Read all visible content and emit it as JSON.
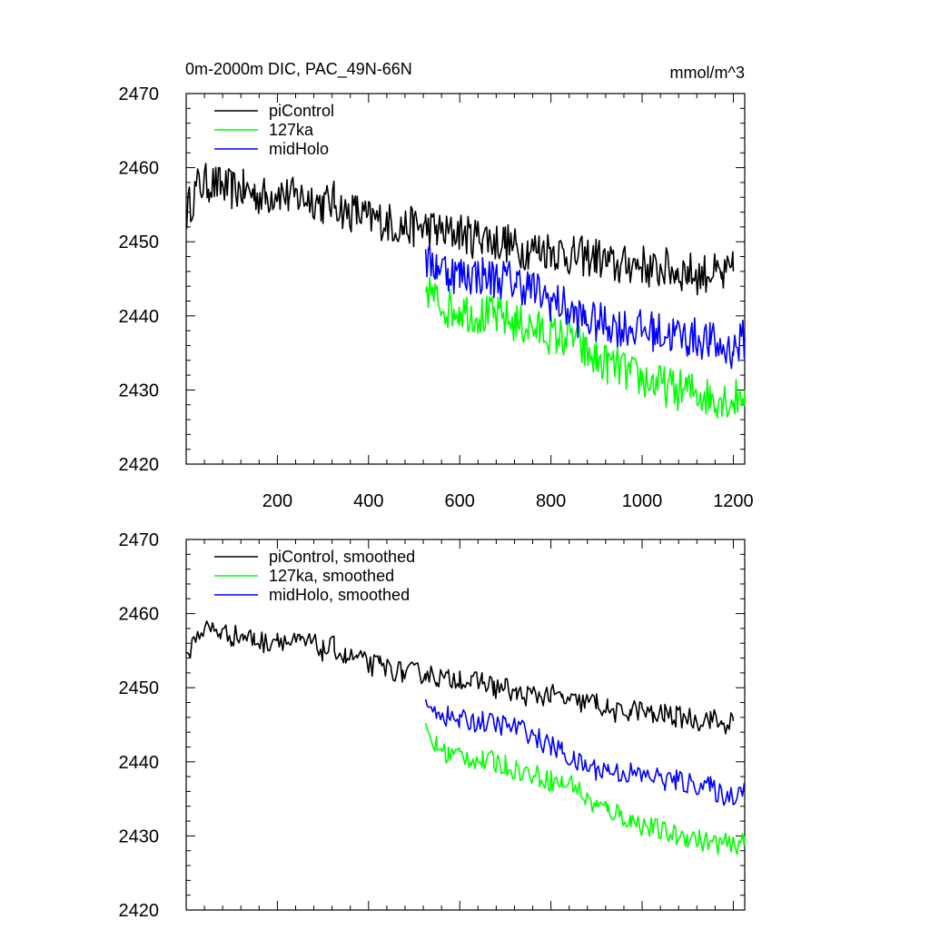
{
  "figure": {
    "title_left": "0m-2000m DIC, PAC_49N-66N",
    "title_right": "mmol/m^3"
  },
  "chart_data": [
    {
      "type": "line",
      "xlim": [
        0,
        1225
      ],
      "ylim": [
        2420,
        2470
      ],
      "yticks": [
        2420,
        2430,
        2440,
        2450,
        2460,
        2470
      ],
      "xticks": [
        200,
        400,
        600,
        800,
        1000,
        1200
      ],
      "xtick_labels": [
        "200",
        "400",
        "600",
        "800",
        "1000",
        "1200"
      ],
      "grid": false,
      "legend_position": "top-left",
      "series": [
        {
          "name": "piControl",
          "color": "#000000",
          "x": [
            1,
            25,
            50,
            75,
            100,
            125,
            150,
            175,
            200,
            225,
            250,
            275,
            300,
            325,
            350,
            375,
            400,
            425,
            450,
            475,
            500,
            525,
            550,
            575,
            600,
            625,
            650,
            675,
            700,
            725,
            750,
            775,
            800,
            825,
            850,
            875,
            900,
            925,
            950,
            975,
            1000,
            1025,
            1050,
            1075,
            1100,
            1125,
            1150,
            1175,
            1200
          ],
          "y": [
            2454,
            2457.5,
            2458,
            2457.5,
            2457,
            2457,
            2456.5,
            2456,
            2457,
            2456,
            2456,
            2456,
            2455,
            2455.5,
            2454,
            2454,
            2453,
            2453,
            2452.5,
            2452,
            2452,
            2452,
            2451.5,
            2451,
            2451.5,
            2450.5,
            2451,
            2450,
            2450,
            2449,
            2449,
            2449,
            2449,
            2448.5,
            2448,
            2448,
            2448,
            2447,
            2446.5,
            2447,
            2447,
            2446,
            2446.5,
            2446,
            2446,
            2445.5,
            2446,
            2445,
            2446
          ]
        },
        {
          "name": "127ka",
          "color": "#00ff00",
          "x": [
            525,
            550,
            575,
            600,
            625,
            650,
            675,
            700,
            725,
            750,
            775,
            800,
            825,
            850,
            875,
            900,
            925,
            950,
            975,
            1000,
            1025,
            1050,
            1075,
            1100,
            1125,
            1150,
            1175,
            1200,
            1225
          ],
          "y": [
            2444,
            2442,
            2441,
            2441,
            2440.5,
            2440,
            2440,
            2439.5,
            2439,
            2438.5,
            2438,
            2437.5,
            2437,
            2437,
            2435,
            2434,
            2433.5,
            2433,
            2432,
            2431.5,
            2431,
            2430.5,
            2430,
            2430,
            2429.5,
            2429,
            2429,
            2428.5,
            2430
          ]
        },
        {
          "name": "midHolo",
          "color": "#0000ff",
          "x": [
            525,
            550,
            575,
            600,
            625,
            650,
            675,
            700,
            725,
            750,
            775,
            800,
            825,
            850,
            875,
            900,
            925,
            950,
            975,
            1000,
            1025,
            1050,
            1075,
            1100,
            1125,
            1150,
            1175,
            1200,
            1225
          ],
          "y": [
            2447,
            2447,
            2446,
            2445.5,
            2445.5,
            2445.5,
            2445,
            2445,
            2444.5,
            2444,
            2443,
            2442,
            2441.5,
            2440,
            2439.5,
            2439,
            2439,
            2438.5,
            2438.5,
            2438,
            2438,
            2437.5,
            2437.5,
            2437,
            2437,
            2436.5,
            2435.5,
            2435.5,
            2437
          ]
        }
      ]
    },
    {
      "type": "line",
      "xlim": [
        0,
        1225
      ],
      "ylim": [
        2420,
        2470
      ],
      "yticks": [
        2420,
        2430,
        2440,
        2450,
        2460,
        2470
      ],
      "xticks": [
        200,
        400,
        600,
        800,
        1000,
        1200
      ],
      "xtick_labels": [],
      "grid": false,
      "legend_position": "top-left",
      "series": [
        {
          "name": "piControl, smoothed",
          "color": "#000000",
          "x": [
            1,
            25,
            50,
            75,
            100,
            125,
            150,
            175,
            200,
            225,
            250,
            275,
            300,
            325,
            350,
            375,
            400,
            425,
            450,
            475,
            500,
            525,
            550,
            575,
            600,
            625,
            650,
            675,
            700,
            725,
            750,
            775,
            800,
            825,
            850,
            875,
            900,
            925,
            950,
            975,
            1000,
            1025,
            1050,
            1075,
            1100,
            1125,
            1150,
            1175,
            1200
          ],
          "y": [
            2454,
            2457.5,
            2458,
            2457.5,
            2457,
            2457,
            2456.5,
            2456,
            2457,
            2456,
            2456,
            2456,
            2455,
            2455.5,
            2454,
            2454,
            2453,
            2453,
            2452.5,
            2452,
            2452,
            2452,
            2451.5,
            2451,
            2451.5,
            2450.5,
            2451,
            2450,
            2450,
            2449,
            2449,
            2449,
            2449,
            2448.5,
            2448,
            2448,
            2448,
            2447,
            2446.5,
            2447,
            2447,
            2446,
            2446.5,
            2446,
            2446,
            2445.5,
            2446,
            2445,
            2445.5
          ]
        },
        {
          "name": "127ka, smoothed",
          "color": "#00ff00",
          "x": [
            525,
            550,
            575,
            600,
            625,
            650,
            675,
            700,
            725,
            750,
            775,
            800,
            825,
            850,
            875,
            900,
            925,
            950,
            975,
            1000,
            1025,
            1050,
            1075,
            1100,
            1125,
            1150,
            1175,
            1200,
            1225
          ],
          "y": [
            2444,
            2442,
            2441,
            2441,
            2440.5,
            2440,
            2440,
            2439.5,
            2439,
            2438.5,
            2438,
            2437.5,
            2437,
            2437,
            2435,
            2434,
            2433.5,
            2433,
            2432,
            2431.5,
            2431,
            2430.5,
            2430,
            2430,
            2429.5,
            2429,
            2429,
            2428.5,
            2430
          ]
        },
        {
          "name": "midHolo, smoothed",
          "color": "#0000ff",
          "x": [
            525,
            550,
            575,
            600,
            625,
            650,
            675,
            700,
            725,
            750,
            775,
            800,
            825,
            850,
            875,
            900,
            925,
            950,
            975,
            1000,
            1025,
            1050,
            1075,
            1100,
            1125,
            1150,
            1175,
            1200,
            1225
          ],
          "y": [
            2447,
            2447,
            2446,
            2445.5,
            2445.5,
            2445.5,
            2445,
            2445,
            2444.5,
            2444,
            2443,
            2442,
            2441.5,
            2440,
            2439.5,
            2439,
            2439,
            2438.5,
            2438.5,
            2438,
            2438,
            2437.5,
            2437.5,
            2437,
            2437,
            2436.5,
            2435.5,
            2435.5,
            2437
          ]
        }
      ]
    }
  ]
}
